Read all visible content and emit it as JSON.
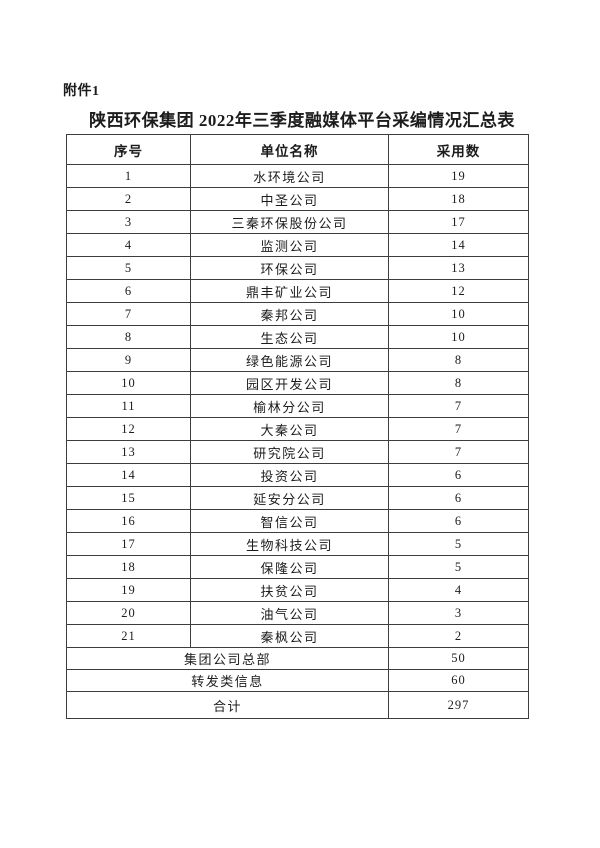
{
  "page": {
    "attachment_label": "附件1",
    "title": "陕西环保集团 2022年三季度融媒体平台采编情况汇总表"
  },
  "table": {
    "headers": [
      "序号",
      "单位名称",
      "采用数"
    ],
    "rows": [
      {
        "seq": "1",
        "unit": "水环境公司",
        "count": "19"
      },
      {
        "seq": "2",
        "unit": "中圣公司",
        "count": "18"
      },
      {
        "seq": "3",
        "unit": "三秦环保股份公司",
        "count": "17"
      },
      {
        "seq": "4",
        "unit": "监测公司",
        "count": "14"
      },
      {
        "seq": "5",
        "unit": "环保公司",
        "count": "13"
      },
      {
        "seq": "6",
        "unit": "鼎丰矿业公司",
        "count": "12"
      },
      {
        "seq": "7",
        "unit": "秦邦公司",
        "count": "10"
      },
      {
        "seq": "8",
        "unit": "生态公司",
        "count": "10"
      },
      {
        "seq": "9",
        "unit": "绿色能源公司",
        "count": "8"
      },
      {
        "seq": "10",
        "unit": "园区开发公司",
        "count": "8"
      },
      {
        "seq": "11",
        "unit": "榆林分公司",
        "count": "7"
      },
      {
        "seq": "12",
        "unit": "大秦公司",
        "count": "7"
      },
      {
        "seq": "13",
        "unit": "研究院公司",
        "count": "7"
      },
      {
        "seq": "14",
        "unit": "投资公司",
        "count": "6"
      },
      {
        "seq": "15",
        "unit": "延安分公司",
        "count": "6"
      },
      {
        "seq": "16",
        "unit": "智信公司",
        "count": "6"
      },
      {
        "seq": "17",
        "unit": "生物科技公司",
        "count": "5"
      },
      {
        "seq": "18",
        "unit": "保隆公司",
        "count": "5"
      },
      {
        "seq": "19",
        "unit": "扶贫公司",
        "count": "4"
      },
      {
        "seq": "20",
        "unit": "油气公司",
        "count": "3"
      },
      {
        "seq": "21",
        "unit": "秦枫公司",
        "count": "2"
      }
    ],
    "footer_rows": [
      {
        "label": "集团公司总部",
        "count": "50"
      },
      {
        "label": "转发类信息",
        "count": "60"
      },
      {
        "label": "合计",
        "count": "297"
      }
    ]
  }
}
